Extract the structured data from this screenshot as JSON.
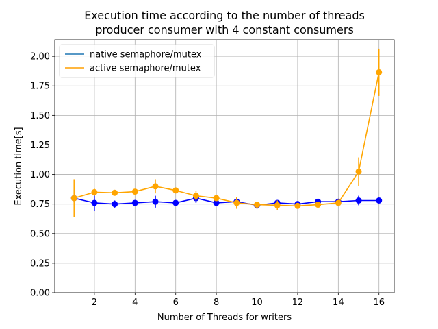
{
  "chart_data": {
    "type": "line",
    "title": "Execution time according to the number of threads\nproducer consumer with 4 constant consumers",
    "xlabel": "Number of Threads for writers",
    "ylabel": "Execution time[s]",
    "xlim": [
      0.05,
      16.75
    ],
    "ylim": [
      0.0,
      2.14
    ],
    "xticks": [
      2,
      4,
      6,
      8,
      10,
      12,
      14,
      16
    ],
    "xtick_labels": [
      "2",
      "4",
      "6",
      "8",
      "10",
      "12",
      "14",
      "16"
    ],
    "yticks": [
      0.0,
      0.25,
      0.5,
      0.75,
      1.0,
      1.25,
      1.5,
      1.75,
      2.0
    ],
    "ytick_labels": [
      "0.00",
      "0.25",
      "0.50",
      "0.75",
      "1.00",
      "1.25",
      "1.50",
      "1.75",
      "2.00"
    ],
    "grid": true,
    "legend_position": "top-left",
    "x": [
      1,
      2,
      3,
      4,
      5,
      6,
      7,
      8,
      9,
      10,
      11,
      12,
      13,
      14,
      15,
      16
    ],
    "series": [
      {
        "name": "native semaphore/mutex",
        "legend_color": "#1f77b4",
        "color": "#0000ff",
        "values": [
          0.8,
          0.76,
          0.75,
          0.76,
          0.77,
          0.76,
          0.8,
          0.76,
          0.77,
          0.74,
          0.76,
          0.75,
          0.77,
          0.77,
          0.78,
          0.78
        ],
        "errors": [
          0.02,
          0.07,
          0.03,
          0.02,
          0.05,
          0.02,
          0.04,
          0.02,
          0.03,
          0.03,
          0.02,
          0.02,
          0.02,
          0.02,
          0.04,
          0.02
        ]
      },
      {
        "name": "active semaphore/mutex",
        "legend_color": "#ff9f00",
        "color": "#ffa500",
        "values": [
          0.8,
          0.85,
          0.845,
          0.855,
          0.9,
          0.865,
          0.82,
          0.8,
          0.76,
          0.745,
          0.74,
          0.735,
          0.745,
          0.76,
          1.025,
          1.865
        ],
        "errors": [
          0.16,
          0.03,
          0.02,
          0.02,
          0.06,
          0.02,
          0.04,
          0.02,
          0.05,
          0.02,
          0.04,
          0.02,
          0.02,
          0.02,
          0.12,
          0.2
        ]
      }
    ]
  }
}
